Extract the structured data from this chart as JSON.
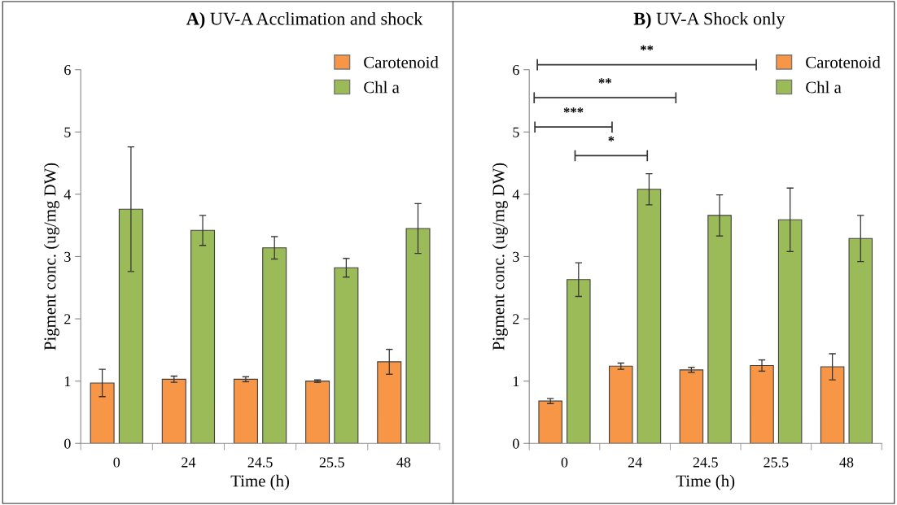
{
  "chart_data": [
    {
      "type": "bar",
      "title": "A) UV-A Acclimation and shock",
      "xlabel": "Time (h)",
      "ylabel": "Pigment conc. (ug/mg DW)",
      "categories": [
        "0",
        "24",
        "24.5",
        "25.5",
        "48"
      ],
      "ylim": [
        0,
        6
      ],
      "yticks": [
        0,
        1,
        2,
        3,
        4,
        5,
        6
      ],
      "legend": "top right",
      "grid": false,
      "series": [
        {
          "name": "Carotenoid",
          "color": "#f79646",
          "values": [
            0.97,
            1.03,
            1.03,
            1.0,
            1.31
          ],
          "errors": [
            0.22,
            0.05,
            0.04,
            0.02,
            0.2
          ]
        },
        {
          "name": "Chl a",
          "color": "#9bbb59",
          "values": [
            3.76,
            3.42,
            3.14,
            2.82,
            3.45
          ],
          "errors": [
            1.0,
            0.24,
            0.18,
            0.15,
            0.4
          ]
        }
      ]
    },
    {
      "type": "bar",
      "title": "B) UV-A Shock only",
      "xlabel": "Time (h)",
      "ylabel": "Pigment conc. (ug/mg DW)",
      "categories": [
        "0",
        "24",
        "24.5",
        "25.5",
        "48"
      ],
      "ylim": [
        0,
        6
      ],
      "yticks": [
        0,
        1,
        2,
        3,
        4,
        5,
        6
      ],
      "legend": "top right",
      "grid": false,
      "annotations": [
        "**",
        "**",
        "***",
        "*"
      ],
      "series": [
        {
          "name": "Carotenoid",
          "color": "#f79646",
          "values": [
            0.68,
            1.24,
            1.18,
            1.25,
            1.23
          ],
          "errors": [
            0.04,
            0.05,
            0.04,
            0.09,
            0.21
          ]
        },
        {
          "name": "Chl a",
          "color": "#9bbb59",
          "values": [
            2.63,
            4.08,
            3.66,
            3.59,
            3.29
          ],
          "errors": [
            0.27,
            0.25,
            0.33,
            0.51,
            0.37
          ]
        }
      ]
    }
  ]
}
